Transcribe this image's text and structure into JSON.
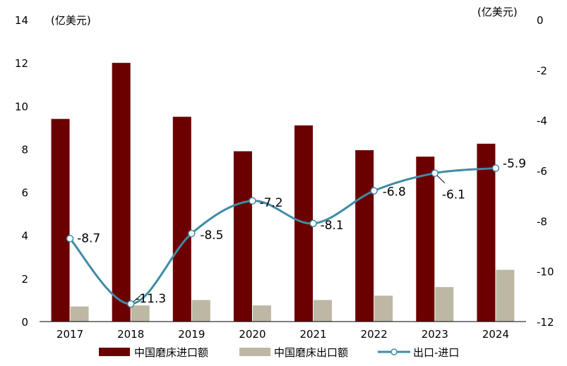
{
  "chart_data": {
    "type": "bar",
    "categories": [
      "2017",
      "2018",
      "2019",
      "2020",
      "2021",
      "2022",
      "2023",
      "2024"
    ],
    "series": [
      {
        "name": "中国磨床进口额",
        "type": "bar",
        "axis": "left",
        "color": "#6B0000",
        "values": [
          9.4,
          12.0,
          9.5,
          7.9,
          9.1,
          7.95,
          7.65,
          8.25
        ]
      },
      {
        "name": "中国磨床出口额",
        "type": "bar",
        "axis": "left",
        "color": "#BDB8A4",
        "values": [
          0.7,
          0.75,
          1.0,
          0.75,
          1.0,
          1.2,
          1.6,
          2.4
        ]
      },
      {
        "name": "出口-进口",
        "type": "line",
        "axis": "right",
        "color": "#3F8CA3",
        "values": [
          -8.7,
          -11.3,
          -8.5,
          -7.2,
          -8.1,
          -6.8,
          -6.1,
          -5.9
        ],
        "labels": [
          "-8.7",
          "-11.3",
          "-8.5",
          "-7.2",
          "-8.1",
          "-6.8",
          "-6.1",
          "-5.9"
        ]
      }
    ],
    "left_axis": {
      "unit": "(亿美元)",
      "ylim": [
        0,
        14
      ],
      "ticks": [
        "0",
        "2",
        "4",
        "6",
        "8",
        "10",
        "12",
        "14"
      ]
    },
    "right_axis": {
      "unit": "(亿美元)",
      "ylim": [
        -12,
        0
      ],
      "ticks": [
        "-12",
        "-10",
        "-8",
        "-6",
        "-4",
        "-2",
        "0"
      ]
    },
    "grid": false,
    "legend_position": "bottom"
  }
}
